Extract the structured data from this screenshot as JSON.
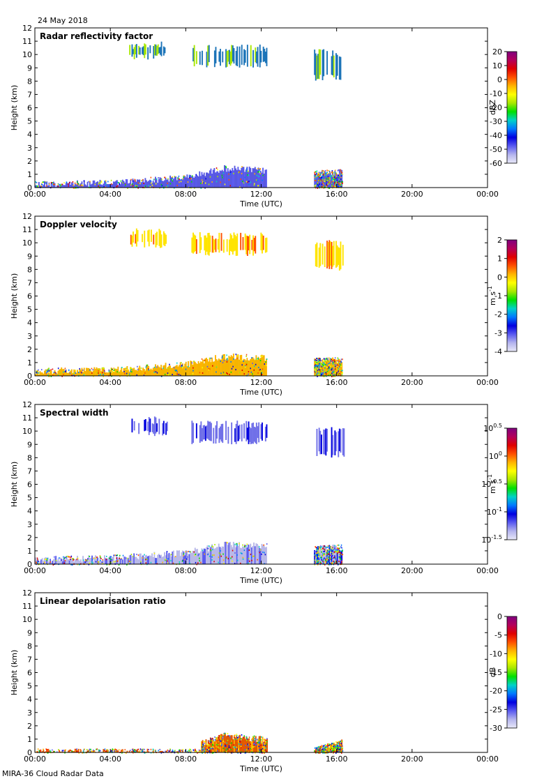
{
  "date_label": "24 May 2018",
  "footer": "MIRA-36 Cloud Radar Data",
  "colors": {
    "rainbow": [
      "#e8e8f8",
      "#b4b4ee",
      "#5a5af0",
      "#0000e0",
      "#0078ff",
      "#00d2c8",
      "#00e000",
      "#a8e800",
      "#ffff00",
      "#ffb400",
      "#ff5000",
      "#e00000",
      "#b4005a",
      "#800080"
    ],
    "refl_ice": "#1c74b8",
    "refl_boundary": "#5858e0",
    "dopp_ice": "#ffe400",
    "dopp_boundary": "#f5b400",
    "sw_ice": "#7070e8",
    "sw_boundary": "#b8b8e8",
    "ldr_boundary": "#e05a00"
  },
  "chart_data": [
    {
      "type": "heatmap",
      "title": "Radar reflectivity factor",
      "xlabel": "Time (UTC)",
      "ylabel": "Height (km)",
      "xticks": [
        "00:00",
        "04:00",
        "08:00",
        "12:00",
        "16:00",
        "20:00",
        "00:00"
      ],
      "xlim": [
        0,
        24
      ],
      "ylim": [
        0,
        12
      ],
      "yticks": [
        0,
        1,
        2,
        3,
        4,
        5,
        6,
        7,
        8,
        9,
        10,
        11,
        12
      ],
      "colorbar": {
        "label": "dBZ",
        "ticks": [
          "20",
          "10",
          "0",
          "-10",
          "-20",
          "-30",
          "-40",
          "-50",
          "-60"
        ],
        "range": [
          -60,
          20
        ]
      },
      "features": [
        {
          "name": "boundary-layer echo",
          "t_start": 0.0,
          "t_end": 12.3,
          "top_km": [
            [
              0,
              0.5
            ],
            [
              4,
              0.6
            ],
            [
              8,
              1.0
            ],
            [
              10,
              1.7
            ],
            [
              12.3,
              1.5
            ]
          ],
          "value": -45
        },
        {
          "name": "boundary-layer echo",
          "t_start": 14.8,
          "t_end": 16.3,
          "top_km": [
            [
              14.8,
              1.3
            ],
            [
              16.3,
              1.4
            ]
          ],
          "value": -45
        },
        {
          "name": "ice cloud",
          "t_start": 5.0,
          "t_end": 7.0,
          "base_km": 9.6,
          "top_km": 11.0,
          "value": -20
        },
        {
          "name": "ice cloud",
          "t_start": 8.3,
          "t_end": 12.3,
          "base_km": 9.0,
          "top_km": 10.8,
          "value": -20
        },
        {
          "name": "ice cloud",
          "t_start": 14.8,
          "t_end": 16.4,
          "base_km": 8.0,
          "top_km": 10.4,
          "value": -20
        }
      ]
    },
    {
      "type": "heatmap",
      "title": "Doppler velocity",
      "xlabel": "Time (UTC)",
      "ylabel": "Height (km)",
      "xticks": [
        "00:00",
        "04:00",
        "08:00",
        "12:00",
        "16:00",
        "20:00",
        "00:00"
      ],
      "xlim": [
        0,
        24
      ],
      "ylim": [
        0,
        12
      ],
      "yticks": [
        0,
        1,
        2,
        3,
        4,
        5,
        6,
        7,
        8,
        9,
        10,
        11,
        12
      ],
      "colorbar": {
        "label": "m s",
        "label_sup": "-1",
        "ticks": [
          "2",
          "1",
          "0",
          "-1",
          "-2",
          "-3",
          "-4"
        ],
        "range": [
          -4,
          2
        ]
      },
      "features": [
        {
          "name": "boundary-layer echo",
          "t_start": 0.0,
          "t_end": 12.3,
          "top_km": [
            [
              0,
              0.6
            ],
            [
              4,
              0.7
            ],
            [
              8,
              1.1
            ],
            [
              10,
              1.7
            ],
            [
              12.3,
              1.6
            ]
          ],
          "value": 0
        },
        {
          "name": "boundary-layer echo",
          "t_start": 14.8,
          "t_end": 16.3,
          "top_km": [
            [
              14.8,
              1.4
            ],
            [
              16.3,
              1.4
            ]
          ],
          "value": -1
        },
        {
          "name": "ice cloud",
          "t_start": 5.0,
          "t_end": 7.0,
          "base_km": 9.6,
          "top_km": 11.1,
          "value": 0.5
        },
        {
          "name": "ice cloud",
          "t_start": 8.3,
          "t_end": 12.3,
          "base_km": 9.0,
          "top_km": 10.8,
          "value": 0.5
        },
        {
          "name": "ice cloud",
          "t_start": 14.8,
          "t_end": 16.4,
          "base_km": 7.9,
          "top_km": 10.2,
          "value": 0.5
        }
      ]
    },
    {
      "type": "heatmap",
      "title": "Spectral width",
      "xlabel": "Time (UTC)",
      "ylabel": "Height (km)",
      "xticks": [
        "00:00",
        "04:00",
        "08:00",
        "12:00",
        "16:00",
        "20:00",
        "00:00"
      ],
      "xlim": [
        0,
        24
      ],
      "ylim": [
        0,
        12
      ],
      "yticks": [
        0,
        1,
        2,
        3,
        4,
        5,
        6,
        7,
        8,
        9,
        10,
        11,
        12
      ],
      "colorbar": {
        "label": "m s",
        "label_sup": "-1",
        "ticks": [
          {
            "base": "10",
            "exp": "0.5"
          },
          {
            "base": "10",
            "exp": "0"
          },
          {
            "base": "10",
            "exp": "-0.5"
          },
          {
            "base": "10",
            "exp": "-1"
          },
          {
            "base": "10",
            "exp": "-1.5"
          }
        ],
        "range": [
          -1.5,
          0.5
        ]
      },
      "features": [
        {
          "name": "boundary-layer echo",
          "t_start": 0.0,
          "t_end": 12.3,
          "top_km": [
            [
              0,
              0.6
            ],
            [
              4,
              0.7
            ],
            [
              8,
              1.1
            ],
            [
              10,
              1.7
            ],
            [
              12.3,
              1.6
            ]
          ],
          "value": -1.2
        },
        {
          "name": "boundary-layer echo",
          "t_start": 14.8,
          "t_end": 16.3,
          "top_km": [
            [
              14.8,
              1.4
            ],
            [
              16.3,
              1.5
            ]
          ],
          "value": -1.0
        },
        {
          "name": "ice cloud",
          "t_start": 5.0,
          "t_end": 7.0,
          "base_km": 9.6,
          "top_km": 11.1,
          "value": -1.1
        },
        {
          "name": "ice cloud",
          "t_start": 8.3,
          "t_end": 12.3,
          "base_km": 9.0,
          "top_km": 10.8,
          "value": -1.1
        },
        {
          "name": "ice cloud",
          "t_start": 14.8,
          "t_end": 16.4,
          "base_km": 8.0,
          "top_km": 10.3,
          "value": -1.1
        }
      ]
    },
    {
      "type": "heatmap",
      "title": "Linear depolarisation ratio",
      "xlabel": "Time (UTC)",
      "ylabel": "Height (km)",
      "xticks": [
        "00:00",
        "04:00",
        "08:00",
        "12:00",
        "16:00",
        "20:00",
        "00:00"
      ],
      "xlim": [
        0,
        24
      ],
      "ylim": [
        0,
        12
      ],
      "yticks": [
        0,
        1,
        2,
        3,
        4,
        5,
        6,
        7,
        8,
        9,
        10,
        11,
        12
      ],
      "colorbar": {
        "label": "dB",
        "ticks": [
          "0",
          "-5",
          "-10",
          "-15",
          "-20",
          "-25",
          "-30"
        ],
        "range": [
          -30,
          0
        ]
      },
      "features": [
        {
          "name": "near-surface echo",
          "t_start": 0.0,
          "t_end": 12.3,
          "top_km": [
            [
              0,
              0.3
            ],
            [
              8,
              0.3
            ],
            [
              12.3,
              0.3
            ]
          ],
          "value": -8
        },
        {
          "name": "insect echo",
          "t_start": 8.8,
          "t_end": 12.3,
          "top_km": [
            [
              8.8,
              0.9
            ],
            [
              10,
              1.5
            ],
            [
              12.3,
              1.2
            ]
          ],
          "value": -10
        },
        {
          "name": "near-surface echo",
          "t_start": 14.8,
          "t_end": 16.3,
          "top_km": [
            [
              14.8,
              0.4
            ],
            [
              16.3,
              1.0
            ]
          ],
          "value": -10
        }
      ]
    }
  ]
}
